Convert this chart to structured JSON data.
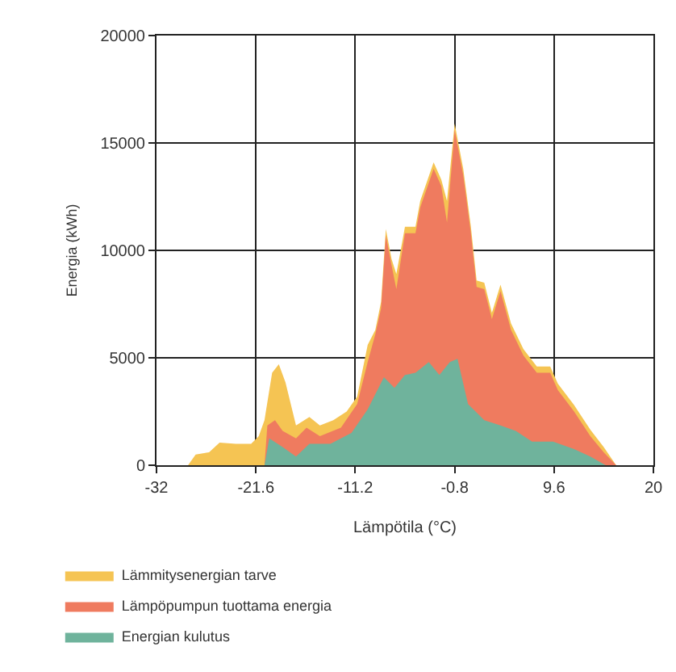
{
  "chart_data": {
    "type": "area",
    "xlabel": "Lämpötila (°C)",
    "ylabel": "Energia (kWh)",
    "xlim": [
      -32,
      20
    ],
    "xticks": [
      -32,
      -21.6,
      -11.2,
      -0.8,
      9.6,
      20
    ],
    "ylim": [
      0,
      20000
    ],
    "yticks": [
      0,
      5000,
      10000,
      15000,
      20000
    ],
    "grid": true,
    "legend": "bottom",
    "marker": "none",
    "series": [
      {
        "name": "Lämmitysenergian tarve",
        "color": "#f5c453",
        "x": [
          -28.7,
          -27.9,
          -26.5,
          -25.4,
          -23.7,
          -22.1,
          -21.3,
          -20.7,
          -19.9,
          -19.2,
          -18.5,
          -17.4,
          -16.0,
          -14.9,
          -13.5,
          -12.1,
          -11.0,
          -9.9,
          -9.1,
          -8.5,
          -8.0,
          -7.4,
          -6.9,
          -6.0,
          -4.9,
          -4.4,
          -3.0,
          -2.2,
          -1.6,
          -0.8,
          0.1,
          0.9,
          1.5,
          2.3,
          3.1,
          4.0,
          5.1,
          6.4,
          7.8,
          9.2,
          10.0,
          11.7,
          13.4,
          14.8,
          16.1
        ],
        "values": [
          0,
          500,
          600,
          1050,
          1000,
          1000,
          1350,
          2100,
          4300,
          4700,
          3850,
          1850,
          2250,
          1850,
          2100,
          2500,
          3200,
          5600,
          6300,
          7600,
          11000,
          9600,
          8900,
          11100,
          11100,
          12300,
          14100,
          13300,
          12300,
          15900,
          13800,
          11100,
          8600,
          8500,
          7100,
          8400,
          6600,
          5400,
          4600,
          4600,
          3800,
          2800,
          1650,
          850,
          0
        ]
      },
      {
        "name": "Lämpöpumpun tuottama energia",
        "color": "#ef7b5f",
        "x": [
          -20.7,
          -20.4,
          -19.6,
          -18.8,
          -17.4,
          -16.3,
          -14.9,
          -12.7,
          -11.0,
          -9.9,
          -9.1,
          -8.5,
          -8.0,
          -7.4,
          -6.9,
          -6.0,
          -4.9,
          -4.4,
          -3.0,
          -2.2,
          -1.6,
          -0.8,
          0.1,
          0.9,
          1.5,
          2.3,
          3.1,
          4.0,
          5.1,
          6.4,
          7.8,
          9.2,
          10.0,
          11.7,
          13.4,
          14.8,
          16.1
        ],
        "values": [
          0,
          1850,
          2100,
          1600,
          1250,
          1750,
          1350,
          1750,
          2850,
          4800,
          6100,
          7300,
          10700,
          9300,
          8200,
          10800,
          10800,
          12000,
          13800,
          13000,
          11300,
          15600,
          13500,
          10800,
          8300,
          8200,
          6800,
          8100,
          6300,
          5100,
          4300,
          4300,
          3500,
          2500,
          1350,
          600,
          0
        ]
      },
      {
        "name": "Energian kulutus",
        "color": "#6fb39c",
        "x": [
          -20.7,
          -20.2,
          -18.8,
          -17.4,
          -16.0,
          -13.8,
          -11.6,
          -9.9,
          -8.2,
          -7.1,
          -6.0,
          -4.9,
          -3.5,
          -2.4,
          -1.3,
          -0.5,
          0.6,
          2.3,
          4.0,
          5.6,
          7.3,
          9.5,
          11.7,
          13.4,
          15.0
        ],
        "values": [
          0,
          1250,
          850,
          400,
          1000,
          1000,
          1500,
          2600,
          4100,
          3600,
          4200,
          4300,
          4800,
          4200,
          4800,
          4950,
          2850,
          2100,
          1850,
          1600,
          1100,
          1100,
          750,
          400,
          0
        ]
      }
    ]
  }
}
